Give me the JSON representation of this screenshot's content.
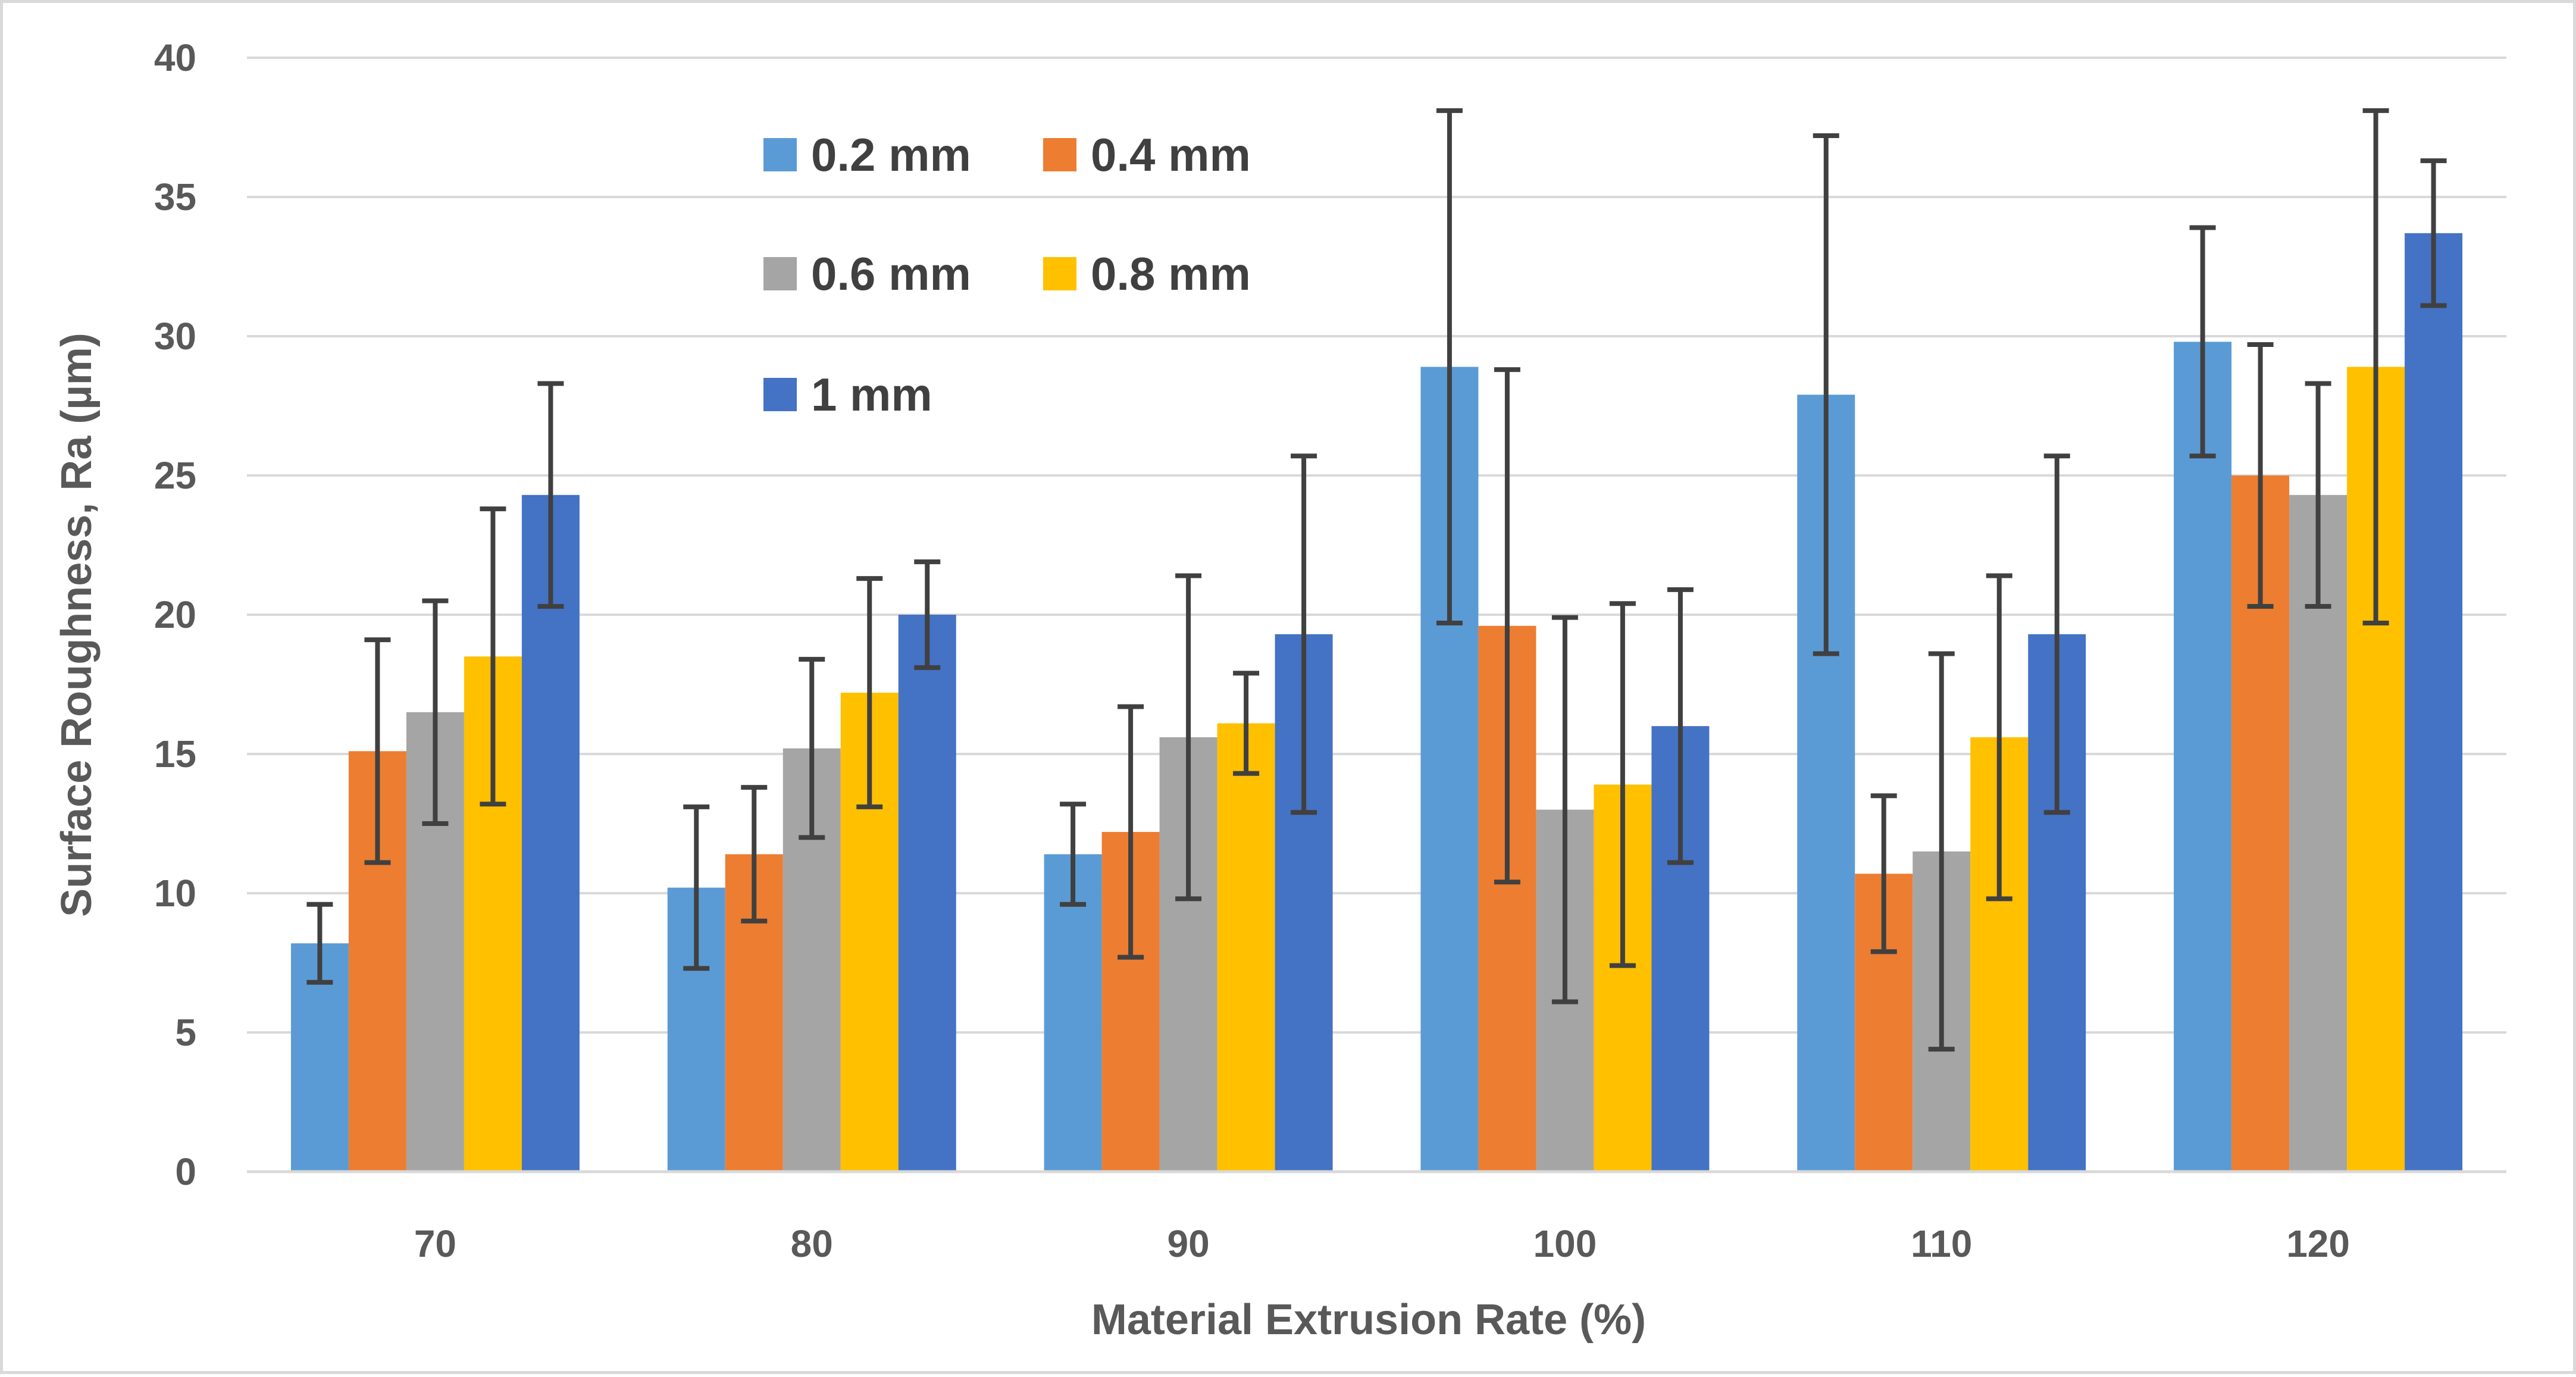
{
  "chart_data": {
    "type": "bar",
    "title": "",
    "xlabel": "Material Extrusion Rate (%)",
    "ylabel": "Surface Roughness, Ra (µm)",
    "ylim": [
      0,
      40
    ],
    "yticks": [
      0,
      5,
      10,
      15,
      20,
      25,
      30,
      35,
      40
    ],
    "grid": true,
    "legend_position": "top-left",
    "categories": [
      "70",
      "80",
      "90",
      "100",
      "110",
      "120"
    ],
    "series": [
      {
        "name": "0.2 mm",
        "color": "#5B9BD5",
        "values": [
          8.2,
          10.2,
          11.4,
          28.9,
          27.9,
          29.8
        ],
        "error": [
          1.4,
          2.9,
          1.8,
          9.2,
          9.3,
          4.1
        ]
      },
      {
        "name": "0.4 mm",
        "color": "#ED7D31",
        "values": [
          15.1,
          11.4,
          12.2,
          19.6,
          10.7,
          25.0
        ],
        "error": [
          4.0,
          2.4,
          4.5,
          9.2,
          2.8,
          4.7
        ]
      },
      {
        "name": "0.6 mm",
        "color": "#A5A5A5",
        "values": [
          16.5,
          15.2,
          15.6,
          13.0,
          11.5,
          24.3
        ],
        "error": [
          4.0,
          3.2,
          5.8,
          6.9,
          7.1,
          4.0
        ]
      },
      {
        "name": "0.8 mm",
        "color": "#FFC000",
        "values": [
          18.5,
          17.2,
          16.1,
          13.9,
          15.6,
          28.9
        ],
        "error": [
          5.3,
          4.1,
          1.8,
          6.5,
          5.8,
          9.2
        ]
      },
      {
        "name": "1 mm",
        "color": "#4472C4",
        "values": [
          24.3,
          20.0,
          19.3,
          16.0,
          19.3,
          33.7
        ],
        "error": [
          4.0,
          1.9,
          6.4,
          4.9,
          6.4,
          2.6
        ]
      }
    ]
  }
}
